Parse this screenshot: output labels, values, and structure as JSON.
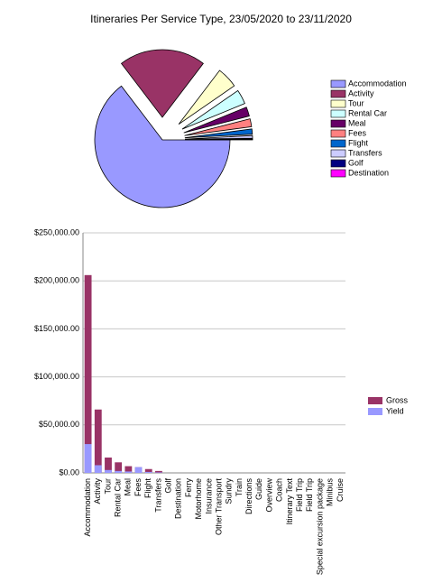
{
  "chart_data": [
    {
      "type": "pie",
      "title": "Itineraries Per Service Type, 23/05/2020 to 23/11/2020",
      "categories": [
        "Accommodation",
        "Activity",
        "Tour",
        "Rental Car",
        "Meal",
        "Fees",
        "Flight",
        "Transfers",
        "Golf",
        "Destination"
      ],
      "values": [
        206000,
        66000,
        16000,
        11000,
        7000,
        6000,
        4000,
        2000,
        500,
        200
      ],
      "colors": [
        "#9999ff",
        "#993366",
        "#ffffcc",
        "#ccffff",
        "#660066",
        "#ff8080",
        "#0066cc",
        "#ccccff",
        "#000080",
        "#ff00ff"
      ],
      "legend": "right"
    },
    {
      "type": "bar",
      "categories": [
        "Accommodation",
        "Activity",
        "Tour",
        "Rental Car",
        "Meal",
        "Fees",
        "Flight",
        "Transfers",
        "Golf",
        "Destination",
        "Ferry",
        "Motorhome",
        "Insurance",
        "Other Transport",
        "Sundry",
        "Train",
        "Directions",
        "Guide",
        "Overview",
        "Coach",
        "Itinerary Text",
        "Field Trip",
        "Field Trip",
        "Special excursion package",
        "Minibus",
        "Cruise"
      ],
      "series": [
        {
          "name": "Gross",
          "color": "#993366",
          "values": [
            206000,
            66000,
            16000,
            11000,
            7000,
            6000,
            4000,
            2000,
            0,
            0,
            0,
            0,
            0,
            0,
            0,
            0,
            0,
            0,
            0,
            0,
            0,
            0,
            0,
            0,
            0,
            0
          ]
        },
        {
          "name": "Yield",
          "color": "#9999ff",
          "values": [
            30000,
            8000,
            3000,
            2000,
            1500,
            6000,
            1000,
            500,
            0,
            0,
            0,
            0,
            0,
            0,
            0,
            0,
            0,
            0,
            0,
            0,
            0,
            0,
            0,
            0,
            0,
            0
          ]
        }
      ],
      "ylim": [
        0,
        250000
      ],
      "yticks": [
        {
          "value": 0,
          "label": "$0.00"
        },
        {
          "value": 50000,
          "label": "$50,000.00"
        },
        {
          "value": 100000,
          "label": "$100,000.00"
        },
        {
          "value": 150000,
          "label": "$150,000.00"
        },
        {
          "value": 200000,
          "label": "$200,000.00"
        },
        {
          "value": 250000,
          "label": "$250,000.00"
        }
      ],
      "grid": true,
      "legend": "right"
    }
  ]
}
